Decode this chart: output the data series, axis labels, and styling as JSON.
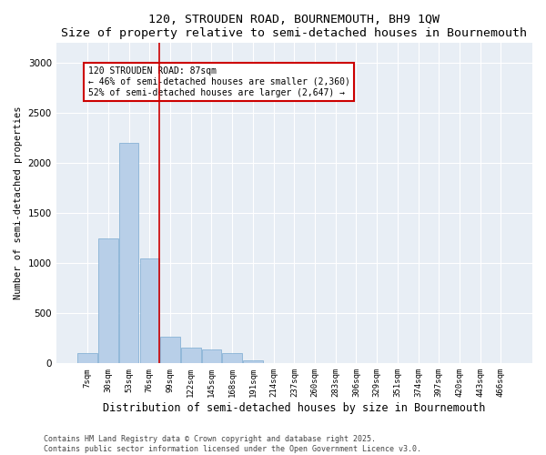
{
  "title1": "120, STROUDEN ROAD, BOURNEMOUTH, BH9 1QW",
  "title2": "Size of property relative to semi-detached houses in Bournemouth",
  "xlabel": "Distribution of semi-detached houses by size in Bournemouth",
  "ylabel": "Number of semi-detached properties",
  "bar_color": "#b8cfe8",
  "bar_edge_color": "#7aaad0",
  "bg_color": "#e8eef5",
  "categories": [
    "7sqm",
    "30sqm",
    "53sqm",
    "76sqm",
    "99sqm",
    "122sqm",
    "145sqm",
    "168sqm",
    "191sqm",
    "214sqm",
    "237sqm",
    "260sqm",
    "283sqm",
    "306sqm",
    "329sqm",
    "351sqm",
    "374sqm",
    "397sqm",
    "420sqm",
    "443sqm",
    "466sqm"
  ],
  "values": [
    100,
    1250,
    2200,
    1050,
    270,
    155,
    140,
    100,
    30,
    5,
    0,
    0,
    0,
    0,
    0,
    0,
    0,
    0,
    0,
    0,
    0
  ],
  "vline_x": 3.45,
  "vline_color": "#cc0000",
  "annotation_text": "120 STROUDEN ROAD: 87sqm\n← 46% of semi-detached houses are smaller (2,360)\n52% of semi-detached houses are larger (2,647) →",
  "ylim": [
    0,
    3200
  ],
  "yticks": [
    0,
    500,
    1000,
    1500,
    2000,
    2500,
    3000
  ],
  "footer": "Contains HM Land Registry data © Crown copyright and database right 2025.\nContains public sector information licensed under the Open Government Licence v3.0."
}
